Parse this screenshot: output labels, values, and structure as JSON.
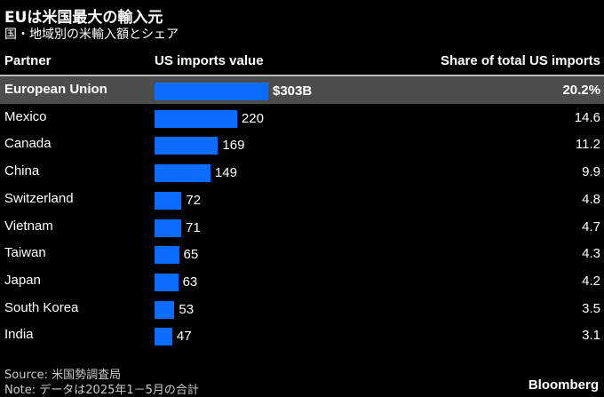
{
  "title": "EUは米国最大の輸入元",
  "subtitle": "国・地域別の米輸入額とシェア",
  "headers": {
    "partner": "Partner",
    "value": "US imports value",
    "share": "Share of total US imports"
  },
  "chart_data": {
    "type": "bar",
    "orientation": "horizontal",
    "columns": [
      "Partner",
      "US imports value",
      "Share of total US imports"
    ],
    "highlight": "European Union",
    "rows": [
      {
        "partner": "European Union",
        "value": 303,
        "value_label": "$303B",
        "share": "20.2%"
      },
      {
        "partner": "Mexico",
        "value": 220,
        "value_label": "220",
        "share": "14.6"
      },
      {
        "partner": "Canada",
        "value": 169,
        "value_label": "169",
        "share": "11.2"
      },
      {
        "partner": "China",
        "value": 149,
        "value_label": "149",
        "share": "9.9"
      },
      {
        "partner": "Switzerland",
        "value": 72,
        "value_label": "72",
        "share": "4.8"
      },
      {
        "partner": "Vietnam",
        "value": 71,
        "value_label": "71",
        "share": "4.7"
      },
      {
        "partner": "Taiwan",
        "value": 65,
        "value_label": "65",
        "share": "4.3"
      },
      {
        "partner": "Japan",
        "value": 63,
        "value_label": "63",
        "share": "4.2"
      },
      {
        "partner": "South Korea",
        "value": 53,
        "value_label": "53",
        "share": "3.5"
      },
      {
        "partner": "India",
        "value": 47,
        "value_label": "47",
        "share": "3.1"
      }
    ],
    "bar_color": "#0a6cff",
    "highlight_row_color": "#4d4d4d"
  },
  "source": "Source: 米国勢調査局",
  "note": "Note: データは2025年1－5月の合計",
  "brand": "Bloomberg"
}
